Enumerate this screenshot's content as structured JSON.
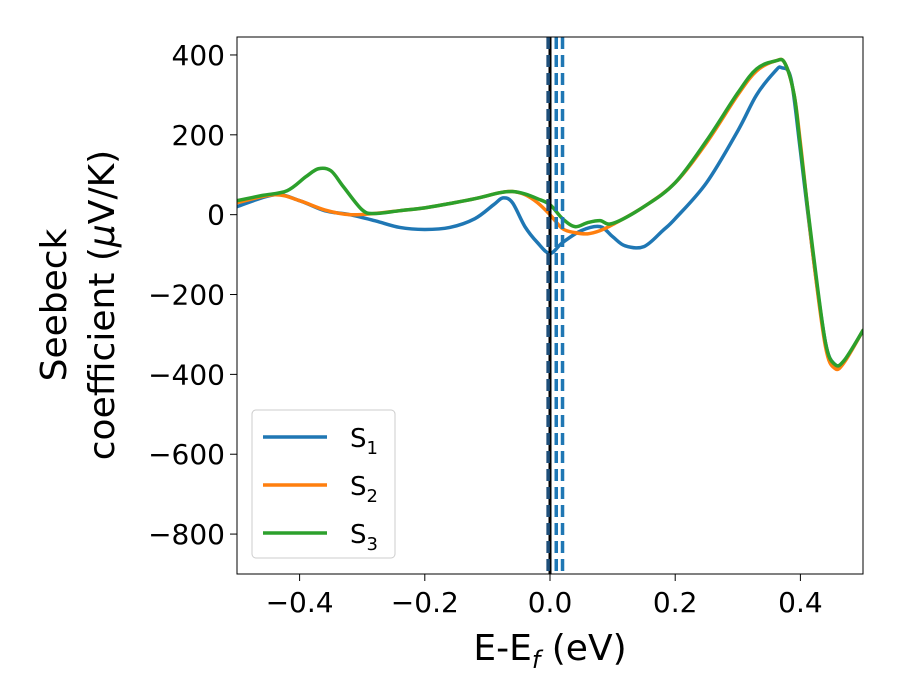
{
  "chart_data": {
    "type": "line",
    "xlabel": "E-E",
    "xlabel_sub": "f",
    "xlabel_unit": " (eV)",
    "ylabel_line1": "Seebeck",
    "ylabel_line2": "coefficient  (",
    "ylabel_mu": "μ",
    "ylabel_unit": "V/K)",
    "xlim": [
      -0.5,
      0.5
    ],
    "ylim": [
      -900,
      445
    ],
    "xticks": [
      -0.4,
      -0.2,
      0.0,
      0.2,
      0.4
    ],
    "xtick_labels": [
      "−0.4",
      "−0.2",
      "0.0",
      "0.2",
      "0.4"
    ],
    "yticks": [
      400,
      200,
      0,
      -200,
      -400,
      -600,
      -800
    ],
    "ytick_labels": [
      "400",
      "200",
      "0",
      "−200",
      "−400",
      "−600",
      "−800"
    ],
    "grid": false,
    "legend_position": "lower-left",
    "series": [
      {
        "name": "S",
        "sub": "1",
        "color": "#1f77b4",
        "x": [
          -0.5,
          -0.44,
          -0.4,
          -0.36,
          -0.32,
          -0.28,
          -0.24,
          -0.2,
          -0.16,
          -0.12,
          -0.09,
          -0.075,
          -0.06,
          -0.04,
          -0.02,
          0.0,
          0.02,
          0.05,
          0.08,
          0.1,
          0.12,
          0.15,
          0.18,
          0.2,
          0.25,
          0.3,
          0.33,
          0.36,
          0.37,
          0.385,
          0.4,
          0.42,
          0.44,
          0.455,
          0.47,
          0.5
        ],
        "y": [
          20,
          50,
          35,
          10,
          0,
          -15,
          -32,
          -37,
          -32,
          -10,
          25,
          42,
          30,
          -30,
          -70,
          -97,
          -70,
          -40,
          -30,
          -55,
          -78,
          -80,
          -40,
          -10,
          80,
          210,
          300,
          360,
          368,
          340,
          160,
          -100,
          -320,
          -375,
          -368,
          -290
        ]
      },
      {
        "name": "S",
        "sub": "2",
        "color": "#ff7f0e",
        "x": [
          -0.5,
          -0.44,
          -0.4,
          -0.36,
          -0.32,
          -0.28,
          -0.24,
          -0.2,
          -0.16,
          -0.12,
          -0.08,
          -0.06,
          -0.04,
          -0.02,
          0.0,
          0.02,
          0.04,
          0.06,
          0.08,
          0.1,
          0.15,
          0.2,
          0.25,
          0.3,
          0.33,
          0.36,
          0.375,
          0.39,
          0.4,
          0.42,
          0.44,
          0.455,
          0.47,
          0.5
        ],
        "y": [
          30,
          50,
          35,
          12,
          0,
          3,
          10,
          17,
          28,
          40,
          55,
          58,
          50,
          30,
          0,
          -35,
          -45,
          -48,
          -40,
          -25,
          20,
          80,
          180,
          300,
          360,
          385,
          380,
          300,
          180,
          -100,
          -330,
          -385,
          -370,
          -290
        ]
      },
      {
        "name": "S",
        "sub": "3",
        "color": "#2ca02c",
        "x": [
          -0.5,
          -0.46,
          -0.42,
          -0.39,
          -0.37,
          -0.35,
          -0.33,
          -0.3,
          -0.28,
          -0.24,
          -0.2,
          -0.16,
          -0.12,
          -0.08,
          -0.06,
          -0.04,
          -0.02,
          0.0,
          0.02,
          0.04,
          0.06,
          0.08,
          0.1,
          0.15,
          0.2,
          0.25,
          0.3,
          0.33,
          0.36,
          0.375,
          0.39,
          0.4,
          0.42,
          0.44,
          0.455,
          0.47,
          0.5
        ],
        "y": [
          35,
          48,
          60,
          95,
          115,
          110,
          70,
          12,
          3,
          10,
          17,
          28,
          40,
          55,
          58,
          52,
          40,
          25,
          -10,
          -30,
          -20,
          -15,
          -22,
          20,
          80,
          185,
          305,
          365,
          385,
          380,
          300,
          170,
          -90,
          -320,
          -375,
          -365,
          -290
        ]
      }
    ],
    "vlines": [
      {
        "x": 0.0,
        "color": "#000000",
        "style": "solid"
      },
      {
        "x": -0.003,
        "color": "#1f4f7a",
        "style": "dashed"
      },
      {
        "x": 0.01,
        "color": "#1f77b4",
        "style": "dashed"
      },
      {
        "x": 0.02,
        "color": "#1f77b4",
        "style": "dashed"
      }
    ]
  }
}
